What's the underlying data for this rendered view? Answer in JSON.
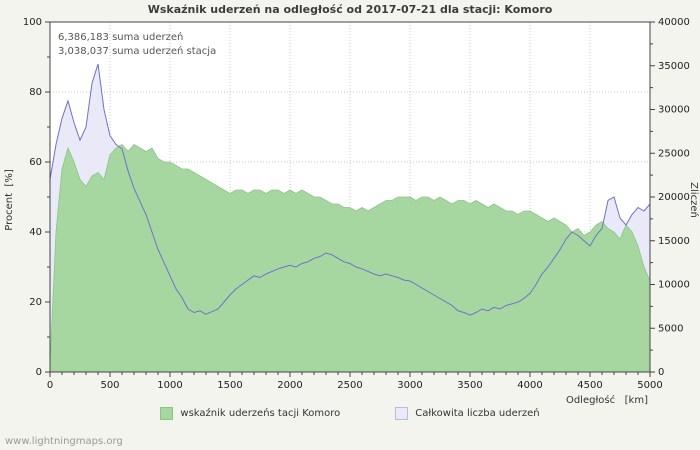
{
  "watermark": "www.lightningmaps.org",
  "chart_data": {
    "type": "area",
    "title": "Wskaźnik uderzeń na odległość od 2017-07-21 dla stacji: Komoro",
    "xlabel": "Odległość   [km]",
    "ylabel_left": "Procent  [%]",
    "ylabel_right": "Zliczeń",
    "annotations": [
      "6,386,183 suma uderzeń",
      "3,038,037 suma uderzeń stacja"
    ],
    "x_start": 0,
    "x_step": 50,
    "xlim": [
      0,
      5000
    ],
    "ylim_left": [
      0,
      100
    ],
    "ylim_right": [
      0,
      40000
    ],
    "x_ticks": [
      0,
      500,
      1000,
      1500,
      2000,
      2500,
      3000,
      3500,
      4000,
      4500,
      5000
    ],
    "y_left_ticks": [
      0,
      20,
      40,
      60,
      80,
      100
    ],
    "y_right_ticks": [
      0,
      5000,
      10000,
      15000,
      20000,
      25000,
      30000,
      35000,
      40000
    ],
    "grid": true,
    "legend_position": "bottom",
    "series": [
      {
        "name": "wskaźnik uderzeńs tacji Komoro",
        "axis": "left",
        "style": "area",
        "values": [
          2,
          40,
          58,
          64,
          60,
          55,
          53,
          56,
          57,
          55,
          62,
          64,
          65,
          63,
          65,
          64,
          63,
          64,
          61,
          60,
          60,
          59,
          58,
          58,
          57,
          56,
          55,
          54,
          53,
          52,
          51,
          52,
          52,
          51,
          52,
          52,
          51,
          52,
          52,
          51,
          52,
          51,
          52,
          51,
          50,
          50,
          49,
          48,
          48,
          47,
          47,
          46,
          47,
          46,
          47,
          48,
          49,
          49,
          50,
          50,
          50,
          49,
          50,
          50,
          49,
          50,
          49,
          48,
          49,
          49,
          48,
          49,
          48,
          47,
          48,
          47,
          46,
          46,
          45,
          46,
          46,
          45,
          44,
          43,
          44,
          43,
          42,
          40,
          41,
          39,
          40,
          42,
          43,
          41,
          40,
          38,
          42,
          40,
          36,
          30,
          26
        ]
      },
      {
        "name": "Całkowita liczba uderzeń",
        "axis": "right",
        "style": "area-line",
        "values": [
          22000,
          26000,
          29000,
          31000,
          28500,
          26500,
          28000,
          33000,
          35200,
          30000,
          27000,
          26000,
          25500,
          23000,
          21000,
          19500,
          18000,
          16000,
          14000,
          12500,
          11000,
          9500,
          8500,
          7200,
          6800,
          7000,
          6600,
          6900,
          7200,
          8000,
          8800,
          9500,
          10000,
          10500,
          11000,
          10800,
          11200,
          11500,
          11800,
          12000,
          12200,
          12000,
          12400,
          12600,
          13000,
          13200,
          13600,
          13400,
          13000,
          12600,
          12400,
          12000,
          11800,
          11500,
          11200,
          11000,
          11200,
          11000,
          10800,
          10500,
          10400,
          10000,
          9600,
          9200,
          8800,
          8400,
          8000,
          7600,
          7000,
          6800,
          6500,
          6800,
          7200,
          7000,
          7400,
          7200,
          7600,
          7800,
          8000,
          8400,
          9000,
          10000,
          11200,
          12000,
          13000,
          14000,
          15200,
          16000,
          15600,
          15000,
          14400,
          15600,
          16400,
          19600,
          20000,
          17600,
          16800,
          18000,
          18800,
          18400,
          19200
        ]
      }
    ],
    "colors": {
      "station_fill": "#a7d7a0",
      "station_edge": "#8cc487",
      "total_fill": "#e9e9f7",
      "total_line": "#7070cc",
      "background": "#f4f4ef",
      "plot_background": "#ffffff"
    }
  },
  "legend": {
    "items": [
      {
        "label": "wskaźnik uderzeńs tacji Komoro",
        "swatch": "station_fill"
      },
      {
        "label": "Całkowita liczba uderzeń",
        "swatch": "total_fill"
      }
    ]
  }
}
